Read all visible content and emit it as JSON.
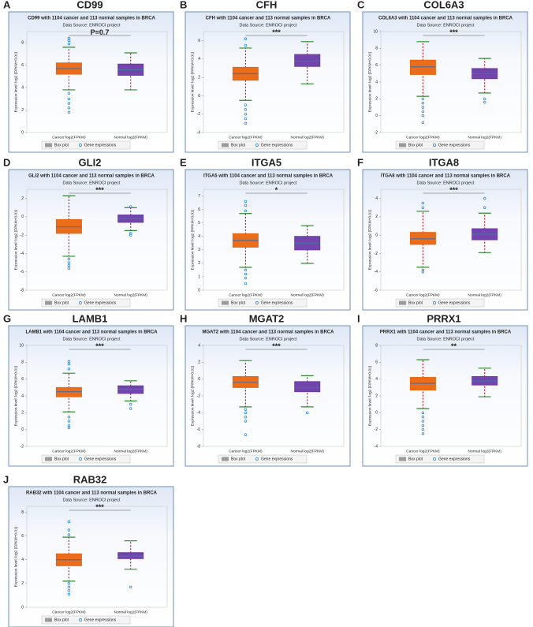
{
  "chart_data": [
    {
      "type": "box",
      "label": "A",
      "gene": "CD99",
      "title": "CD99 with 1104 cancer and 113 normal samples in BRCA",
      "subtitle": "Data Source: ENROCI project",
      "y_label": "Expression level: log2 (FPKM+0.01)",
      "categories": [
        "Cancer log2(FPKM)",
        "Normal log2(FPKM)"
      ],
      "legend": [
        "Box plot",
        "Gene expressions"
      ],
      "significance": "P=0.7",
      "ylim": [
        0,
        9
      ],
      "yticks": [
        0,
        2,
        4,
        6,
        8
      ],
      "boxes": [
        {
          "color": "#e8650f",
          "min": 3.8,
          "q1": 5.2,
          "median": 5.7,
          "q3": 6.2,
          "max": 7.6,
          "outliers": [
            3.5,
            3.0,
            2.6,
            2.2,
            1.8,
            7.9,
            8.2,
            8.4
          ]
        },
        {
          "color": "#6a3aa8",
          "min": 3.8,
          "q1": 5.1,
          "median": 5.6,
          "q3": 6.1,
          "max": 7.1,
          "outliers": []
        }
      ]
    },
    {
      "type": "box",
      "label": "B",
      "gene": "CFH",
      "title": "CFH with 1104 cancer and 113 normal samples in BRCA",
      "subtitle": "Data Source: ENROCI project",
      "y_label": "Expression level: log2 (FPKM+0.01)",
      "categories": [
        "Cancer log2(FPKM)",
        "Normal log2(FPKM)"
      ],
      "legend": [
        "Box plot",
        "Gene expressions"
      ],
      "significance": "***",
      "ylim": [
        -4,
        7
      ],
      "yticks": [
        -4,
        -2,
        0,
        2,
        4,
        6
      ],
      "boxes": [
        {
          "color": "#e8650f",
          "min": -0.5,
          "q1": 1.7,
          "median": 2.4,
          "q3": 3.1,
          "max": 5.2,
          "outliers": [
            -1,
            -1.5,
            -2,
            -2.5,
            -3,
            5.5,
            6.2
          ]
        },
        {
          "color": "#6a3aa8",
          "min": 1.3,
          "q1": 3.2,
          "median": 3.8,
          "q3": 4.5,
          "max": 5.9,
          "outliers": []
        }
      ]
    },
    {
      "type": "box",
      "label": "C",
      "gene": "COL6A3",
      "title": "COL6A3 with 1104 cancer and 113 normal samples in BRCA",
      "subtitle": "Data Source: ENROCI project",
      "y_label": "Expression level: log2 (FPKM+0.01)",
      "categories": [
        "Cancer log2(FPKM)",
        "Normal log2(FPKM)"
      ],
      "legend": [
        "Box plot",
        "Gene expressions"
      ],
      "significance": "***",
      "ylim": [
        -2,
        10
      ],
      "yticks": [
        -2,
        0,
        2,
        4,
        6,
        8,
        10
      ],
      "boxes": [
        {
          "color": "#e8650f",
          "min": 2.3,
          "q1": 4.9,
          "median": 5.8,
          "q3": 6.6,
          "max": 8.8,
          "outliers": [
            2,
            1.5,
            1,
            0.5,
            0,
            -0.8
          ]
        },
        {
          "color": "#6a3aa8",
          "min": 2.7,
          "q1": 4.4,
          "median": 5.0,
          "q3": 5.6,
          "max": 6.8,
          "outliers": [
            2,
            1.6
          ]
        }
      ]
    },
    {
      "type": "box",
      "label": "D",
      "gene": "GLI2",
      "title": "GLI2 with 1104 cancer and 113 normal samples in BRCA",
      "subtitle": "Data Source: ENROCI project",
      "y_label": "Expression level: log2 (FPKM+0.01)",
      "categories": [
        "Cancer log2(FPKM)",
        "Normal log2(FPKM)"
      ],
      "legend": [
        "Box plot",
        "Gene expressions"
      ],
      "significance": "***",
      "ylim": [
        -8,
        3
      ],
      "yticks": [
        -8,
        -6,
        -4,
        -2,
        0,
        2
      ],
      "boxes": [
        {
          "color": "#e8650f",
          "min": -4.3,
          "q1": -1.8,
          "median": -1.1,
          "q3": -0.3,
          "max": 2.3,
          "outliers": [
            -4.6,
            -5,
            -5.3,
            -5.6
          ]
        },
        {
          "color": "#6a3aa8",
          "min": -1.5,
          "q1": -0.6,
          "median": -0.2,
          "q3": 0.2,
          "max": 1.0,
          "outliers": [
            -1.8,
            -2,
            1.1
          ]
        }
      ]
    },
    {
      "type": "box",
      "label": "E",
      "gene": "ITGA5",
      "title": "ITGA5 with 1104 cancer and 113 normal samples in BRCA",
      "subtitle": "Data Source: ENROCI project",
      "y_label": "Expression level: log2 (FPKM+0.01)",
      "categories": [
        "Cancer log2(FPKM)",
        "Normal log2(FPKM)"
      ],
      "legend": [
        "Box plot",
        "Gene expressions"
      ],
      "significance": "*",
      "ylim": [
        0,
        7.5
      ],
      "yticks": [
        0,
        1,
        2,
        3,
        4,
        5,
        6,
        7
      ],
      "boxes": [
        {
          "color": "#e8650f",
          "min": 1.7,
          "q1": 3.2,
          "median": 3.7,
          "q3": 4.2,
          "max": 5.7,
          "outliers": [
            1.5,
            1.2,
            0.9,
            0.5,
            5.9,
            6.3,
            6.6
          ]
        },
        {
          "color": "#6a3aa8",
          "min": 2.0,
          "q1": 3.0,
          "median": 3.5,
          "q3": 4.0,
          "max": 4.8,
          "outliers": []
        }
      ]
    },
    {
      "type": "box",
      "label": "F",
      "gene": "ITGA8",
      "title": "ITGA8 with 1104 cancer and 113 normal samples in BRCA",
      "subtitle": "Data Source: ENROCI project",
      "y_label": "Expression level: log2 (FPKM+0.01)",
      "categories": [
        "Cancer log2(FPKM)",
        "Normal log2(FPKM)"
      ],
      "legend": [
        "Box plot",
        "Gene expressions"
      ],
      "significance": "***",
      "ylim": [
        -6,
        5
      ],
      "yticks": [
        -6,
        -4,
        -2,
        0,
        2,
        4
      ],
      "boxes": [
        {
          "color": "#e8650f",
          "min": -3.5,
          "q1": -1.0,
          "median": -0.4,
          "q3": 0.3,
          "max": 2.6,
          "outliers": [
            -3.8,
            -4,
            3,
            3.5
          ]
        },
        {
          "color": "#6a3aa8",
          "min": -1.9,
          "q1": -0.5,
          "median": 0.1,
          "q3": 0.7,
          "max": 2.4,
          "outliers": [
            3,
            4
          ]
        }
      ]
    },
    {
      "type": "box",
      "label": "G",
      "gene": "LAMB1",
      "title": "LAMB1 with 1104 cancer and 113 normal samples in BRCA",
      "subtitle": "Data Source: ENROCI project",
      "y_label": "Expression level: log2 (FPKM+0.01)",
      "categories": [
        "Cancer log2(FPKM)",
        "Normal log2(FPKM)"
      ],
      "legend": [
        "Box plot",
        "Gene expressions"
      ],
      "significance": "***",
      "ylim": [
        -2,
        10
      ],
      "yticks": [
        -2,
        0,
        2,
        4,
        6,
        8,
        10
      ],
      "boxes": [
        {
          "color": "#e8650f",
          "min": 2.1,
          "q1": 3.9,
          "median": 4.5,
          "q3": 5.0,
          "max": 6.7,
          "outliers": [
            1.5,
            1,
            0.5,
            0.2,
            7.2,
            7.8,
            8.1
          ]
        },
        {
          "color": "#6a3aa8",
          "min": 3.4,
          "q1": 4.3,
          "median": 4.8,
          "q3": 5.2,
          "max": 5.8,
          "outliers": [
            2.5,
            3.0
          ]
        }
      ]
    },
    {
      "type": "box",
      "label": "H",
      "gene": "MGAT2",
      "title": "MGAT2 with 1104 cancer and 113 normal samples in BRCA",
      "subtitle": "Data Source: ENROCI project",
      "y_label": "Expression level: log2 (FPKM+0.01)",
      "categories": [
        "Cancer log2(FPKM)",
        "Normal log2(FPKM)"
      ],
      "legend": [
        "Box plot",
        "Gene expressions"
      ],
      "significance": "***",
      "ylim": [
        -8,
        4
      ],
      "yticks": [
        -8,
        -6,
        -4,
        -2,
        0,
        2,
        4
      ],
      "boxes": [
        {
          "color": "#e8650f",
          "min": -3.3,
          "q1": -1.0,
          "median": -0.4,
          "q3": 0.3,
          "max": 2.2,
          "outliers": [
            -3.6,
            -4,
            -4.5,
            -5,
            -6.6
          ]
        },
        {
          "color": "#6a3aa8",
          "min": -3.3,
          "q1": -1.5,
          "median": -1,
          "q3": -0.3,
          "max": 0.4,
          "outliers": [
            -4
          ]
        }
      ]
    },
    {
      "type": "box",
      "label": "I",
      "gene": "PRRX1",
      "title": "PRRX1 with 1104 cancer and 113 normal samples in BRCA",
      "subtitle": "Data Source: ENROCI project",
      "y_label": "Expression level: log2 (FPKM+0.01)",
      "categories": [
        "Cancer log2(FPKM)",
        "Normal log2(FPKM)"
      ],
      "legend": [
        "Box plot",
        "Gene expressions"
      ],
      "significance": "**",
      "ylim": [
        -4,
        8
      ],
      "yticks": [
        -4,
        -2,
        0,
        2,
        4,
        6,
        8
      ],
      "boxes": [
        {
          "color": "#e8650f",
          "min": 0.5,
          "q1": 2.7,
          "median": 3.5,
          "q3": 4.2,
          "max": 6.3,
          "outliers": [
            0,
            -0.5,
            -1,
            -1.5,
            -2,
            -2.5
          ]
        },
        {
          "color": "#6a3aa8",
          "min": 1.9,
          "q1": 3.3,
          "median": 3.8,
          "q3": 4.3,
          "max": 5.3,
          "outliers": []
        }
      ]
    },
    {
      "type": "box",
      "label": "J",
      "gene": "RAB32",
      "title": "RAB32 with 1104 cancer and 113 normal samples in BRCA",
      "subtitle": "Data Source: ENROCI project",
      "y_label": "Expression level: log2 (FPKM+0.01)",
      "categories": [
        "Cancer log2(FPKM)",
        "Normal log2(FPKM)"
      ],
      "legend": [
        "Box plot",
        "Gene expressions"
      ],
      "significance": "***",
      "ylim": [
        0,
        8.5
      ],
      "yticks": [
        0,
        2,
        4,
        6,
        8
      ],
      "boxes": [
        {
          "color": "#e8650f",
          "min": 2.2,
          "q1": 3.5,
          "median": 4.0,
          "q3": 4.5,
          "max": 5.9,
          "outliers": [
            2,
            1.7,
            1.4,
            1.1,
            6.1,
            6.5,
            7.2
          ]
        },
        {
          "color": "#6a3aa8",
          "min": 3.2,
          "q1": 4.1,
          "median": 4.3,
          "q3": 4.6,
          "max": 5.6,
          "outliers": [
            1.7
          ]
        }
      ]
    }
  ]
}
